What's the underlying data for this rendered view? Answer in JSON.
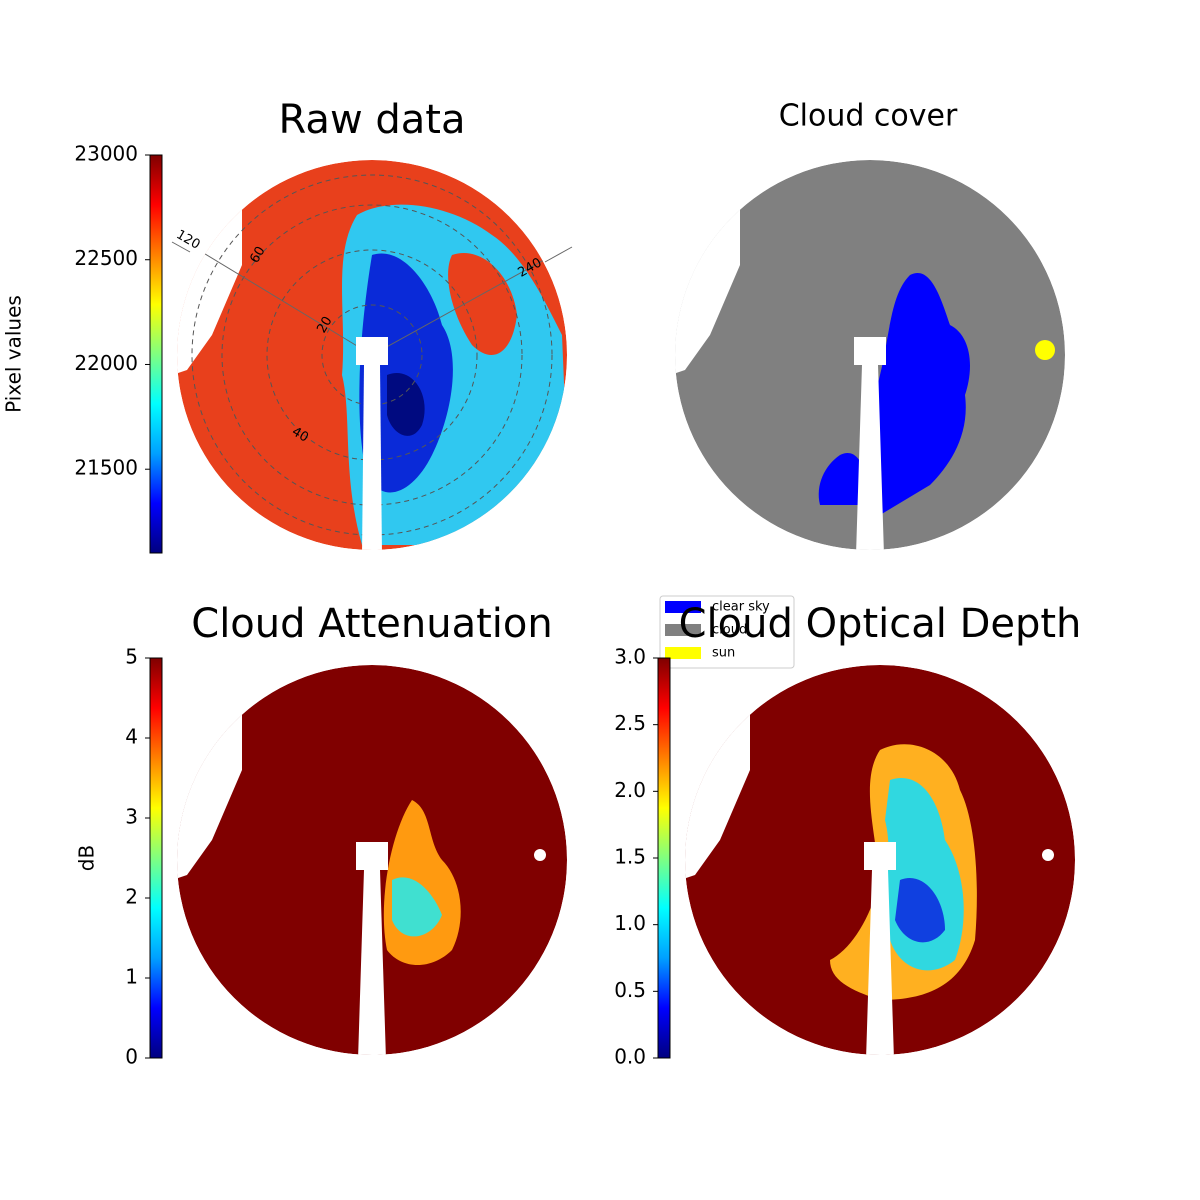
{
  "chart_data": [
    {
      "type": "image",
      "title": "Raw data",
      "colormap": "jet",
      "colorbar": {
        "label": "Pixel values",
        "lim": [
          21100,
          23000
        ],
        "ticks": [
          21500,
          22000,
          22500,
          23000
        ]
      },
      "annotations": [
        "120",
        "240",
        "20",
        "40",
        "60"
      ]
    },
    {
      "type": "image",
      "title": "Cloud cover",
      "legend": [
        {
          "name": "clear sky",
          "color": "#0000ff"
        },
        {
          "name": "cloud",
          "color": "#808080"
        },
        {
          "name": "sun",
          "color": "#ffff00"
        }
      ]
    },
    {
      "type": "image",
      "title": "Cloud Attenuation",
      "colormap": "jet",
      "colorbar": {
        "label": "dB",
        "lim": [
          0,
          5
        ],
        "ticks": [
          0,
          1,
          2,
          3,
          4,
          5
        ]
      }
    },
    {
      "type": "image",
      "title": "Cloud Optical Depth",
      "colormap": "jet",
      "colorbar": {
        "lim": [
          0,
          3
        ],
        "ticks": [
          {
            "value": 0,
            "label": "0.0"
          },
          {
            "value": 0.5,
            "label": "0.5"
          },
          {
            "value": 1,
            "label": "1.0"
          },
          {
            "value": 1.5,
            "label": "1.5"
          },
          {
            "value": 2,
            "label": "2.0"
          },
          {
            "value": 2.5,
            "label": "2.5"
          },
          {
            "value": 3,
            "label": "3.0"
          }
        ]
      }
    }
  ]
}
